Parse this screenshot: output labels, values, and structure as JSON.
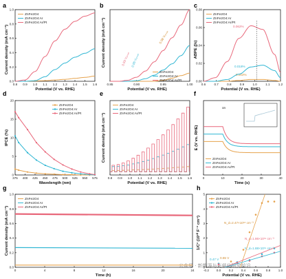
{
  "colors": {
    "orange": "#e6a24c",
    "teal": "#2fb6d3",
    "pink": "#e8677a",
    "inset": "#a8c7d6"
  },
  "legend3": [
    "ZnFe2O4",
    "ZnFe2O4:Ar",
    "ZnFe2O4:Ar/Pt"
  ],
  "watermark": "公众号 · 新能源与光催化研究前沿",
  "panels": {
    "a": {
      "letter": "a",
      "xlabel": "Potential (V vs. RHE)",
      "ylabel": "Current density (mA cm⁻²)",
      "xticks": [
        "0.8",
        "0.9",
        "1.0",
        "1.1",
        "1.2",
        "1.3",
        "1.4",
        "1.5",
        "1.6"
      ],
      "yticks": [
        "0.0",
        "0.2",
        "0.4",
        "0.6",
        "0.8",
        "1.0"
      ]
    },
    "b": {
      "letter": "b",
      "xlabel": "Potential (V vs. RHE)",
      "ylabel": "Current density (mA cm⁻²)",
      "xticks": [
        "0.85",
        "0.90",
        "0.95",
        "1.00"
      ],
      "annotations": [
        "0.93 Vₒₙₛₑₜ",
        "0.95 Vₒₙₛₑₜ",
        "0.98 Vₒₙₛₑₜ"
      ]
    },
    "c": {
      "letter": "c",
      "xlabel": "Potential (V vs. RHE)",
      "ylabel": "ABPE (%)",
      "xticks": [
        "0.6",
        "0.7",
        "0.8",
        "0.9",
        "1.0",
        "1.1",
        "1.2"
      ],
      "yticks": [
        "0.00",
        "0.02",
        "0.04",
        "0.06",
        "0.08"
      ],
      "peaks": [
        "0.062%",
        "0.018%",
        "0.002%"
      ]
    },
    "d": {
      "letter": "d",
      "xlabel": "Wavelength (nm)",
      "ylabel": "IPCE (%)",
      "xticks": [
        "375",
        "400",
        "425",
        "450",
        "475",
        "500",
        "525",
        "550",
        "575"
      ],
      "yticks": [
        "0",
        "5",
        "10",
        "15",
        "20"
      ]
    },
    "e": {
      "letter": "e",
      "xlabel": "Potential (V vs. RHE)",
      "ylabel": "Current density (mA cm⁻²)",
      "xticks": [
        "0.8",
        "0.9",
        "1.0",
        "1.1",
        "1.2",
        "1.3",
        "1.4",
        "1.5",
        "1.6"
      ]
    },
    "f": {
      "letter": "f",
      "xlabel": "Time (s)",
      "ylabel": "E (V vs. RHE)",
      "xticks": [
        "0",
        "10",
        "20",
        "30",
        "40"
      ],
      "on": "on",
      "off": "off"
    },
    "g": {
      "letter": "g",
      "xlabel": "Time (h)",
      "ylabel": "Current density (mA cm⁻²)",
      "xticks": [
        "0",
        "4",
        "8",
        "12",
        "16",
        "20",
        "24"
      ],
      "yticks": [
        "0.0",
        "0.2",
        "0.4",
        "0.6",
        "0.8",
        "1.0"
      ]
    },
    "h": {
      "letter": "h",
      "xlabel": "Potential (V vs. RHE)",
      "ylabel": "1/C² (10¹⁰ F⁻² cm⁴)",
      "xticks": [
        "-0.2",
        "0.0",
        "0.2",
        "0.4",
        "0.6",
        "0.8",
        "1.0"
      ],
      "yticks": [
        "0",
        "1",
        "2",
        "3",
        "4",
        "5"
      ],
      "nd": [
        "N_d=2.47×10¹⁸ cm⁻³",
        "N_d=1.86×10¹⁹ cm⁻³",
        "N_d=1.88×10¹⁹ cm⁻³"
      ],
      "vfb": [
        "0.47 V",
        "0.65 V"
      ]
    }
  },
  "chart_data": [
    {
      "panel": "a",
      "type": "line",
      "x": [
        0.8,
        0.9,
        1.0,
        1.1,
        1.2,
        1.3,
        1.4,
        1.5,
        1.6
      ],
      "series": [
        {
          "name": "ZnFe2O4",
          "values": [
            0,
            0,
            0.005,
            0.01,
            0.02,
            0.03,
            0.045,
            0.06,
            0.08
          ]
        },
        {
          "name": "ZnFe2O4:Ar",
          "values": [
            0,
            0,
            0.01,
            0.07,
            0.18,
            0.28,
            0.37,
            0.43,
            0.5
          ]
        },
        {
          "name": "ZnFe2O4:Ar/Pt",
          "values": [
            0,
            0.02,
            0.15,
            0.38,
            0.62,
            0.8,
            0.92,
            1.0,
            1.05
          ]
        }
      ],
      "ylim": [
        0,
        1.1
      ]
    },
    {
      "panel": "b",
      "type": "line",
      "x": [
        0.85,
        0.87,
        0.89,
        0.91,
        0.93,
        0.95,
        0.97,
        0.99,
        1.01,
        1.03
      ],
      "series": [
        {
          "name": "ZnFe2O4",
          "values": [
            0,
            0,
            0,
            0,
            0,
            0,
            0.02,
            0.06,
            0.11,
            0.16
          ]
        },
        {
          "name": "ZnFe2O4:Ar",
          "values": [
            0,
            0,
            0,
            0.01,
            0.05,
            0.12,
            0.22,
            0.34,
            0.5,
            0.7
          ]
        },
        {
          "name": "ZnFe2O4:Ar/Pt",
          "values": [
            0,
            0,
            0.02,
            0.08,
            0.2,
            0.38,
            0.6,
            0.85,
            1.1,
            1.4
          ]
        }
      ]
    },
    {
      "panel": "c",
      "type": "line",
      "x": [
        0.6,
        0.7,
        0.8,
        0.9,
        1.0,
        1.1,
        1.2,
        1.25
      ],
      "series": [
        {
          "name": "ZnFe2O4",
          "values": [
            0,
            0,
            0,
            0.001,
            0.002,
            0.002,
            0.001,
            0
          ]
        },
        {
          "name": "ZnFe2O4:Ar",
          "values": [
            0,
            0,
            0.002,
            0.008,
            0.016,
            0.018,
            0.012,
            0.004
          ]
        },
        {
          "name": "ZnFe2O4:Ar/Pt",
          "values": [
            0,
            0.004,
            0.022,
            0.048,
            0.062,
            0.058,
            0.03,
            0.01
          ]
        }
      ],
      "ylim": [
        0,
        0.08
      ]
    },
    {
      "panel": "d",
      "type": "line",
      "x": [
        365,
        375,
        400,
        425,
        450,
        475,
        500,
        525,
        550,
        575,
        590
      ],
      "series": [
        {
          "name": "ZnFe2O4",
          "values": [
            1.6,
            1.3,
            0.8,
            0.5,
            0.3,
            0.2,
            0.1,
            0.1,
            0,
            0,
            0
          ]
        },
        {
          "name": "ZnFe2O4:Ar",
          "values": [
            10.5,
            8.7,
            6,
            4,
            2.6,
            1.7,
            1,
            0.6,
            0.3,
            0.1,
            0
          ]
        },
        {
          "name": "ZnFe2O4:Ar/Pt",
          "values": [
            17,
            15.4,
            12.2,
            8.7,
            6.2,
            4.2,
            2.7,
            1.6,
            0.8,
            0.3,
            0.1
          ]
        }
      ],
      "ylim": [
        0,
        20
      ]
    },
    {
      "panel": "e",
      "type": "line",
      "x": [
        0.8,
        1.6
      ],
      "series": [
        {
          "name": "ZnFe2O4"
        },
        {
          "name": "ZnFe2O4:Ar"
        },
        {
          "name": "ZnFe2O4:Ar/Pt"
        }
      ]
    },
    {
      "panel": "f",
      "type": "line",
      "x": [
        0,
        10,
        20,
        30,
        40
      ],
      "series": [
        {
          "name": "ZnFe2O4"
        },
        {
          "name": "ZnFe2O4:Ar"
        },
        {
          "name": "ZnFe2O4:Ar/Pt"
        }
      ]
    },
    {
      "panel": "g",
      "type": "line",
      "x": [
        0,
        24
      ],
      "series": [
        {
          "name": "ZnFe2O4",
          "values": [
            0.03,
            0.03
          ]
        },
        {
          "name": "ZnFe2O4:Ar",
          "values": [
            0.27,
            0.26
          ]
        },
        {
          "name": "ZnFe2O4:Ar/Pt",
          "values": [
            0.73,
            0.71
          ]
        }
      ],
      "ylim": [
        0,
        1.0
      ]
    },
    {
      "panel": "h",
      "type": "scatter",
      "x": [
        -0.2,
        1.0
      ],
      "series": [
        {
          "name": "ZnFe2O4",
          "values": [
            [
              0.2,
              0.4
            ],
            [
              0.4,
              1.2
            ],
            [
              0.5,
              2.4
            ],
            [
              0.6,
              3.6
            ],
            [
              0.7,
              4.4
            ],
            [
              0.8,
              4.5
            ],
            [
              0.9,
              4.5
            ]
          ]
        },
        {
          "name": "ZnFe2O4:Ar",
          "values": [
            [
              0.0,
              0.25
            ],
            [
              0.3,
              0.35
            ],
            [
              0.5,
              0.5
            ],
            [
              0.7,
              0.9
            ],
            [
              0.9,
              1.3
            ]
          ]
        },
        {
          "name": "ZnFe2O4:Ar/Pt",
          "values": [
            [
              0.0,
              0.2
            ],
            [
              0.3,
              0.3
            ],
            [
              0.5,
              0.45
            ],
            [
              0.7,
              0.75
            ],
            [
              0.9,
              1.0
            ]
          ]
        }
      ],
      "ylim": [
        0,
        5
      ]
    }
  ]
}
